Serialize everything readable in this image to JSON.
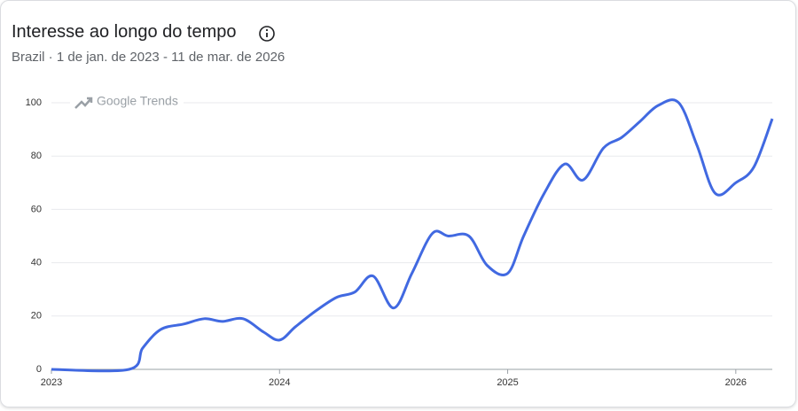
{
  "chart_data": {
    "type": "line",
    "title": "Interesse ao longo do tempo",
    "subtitle": "Brazil · 1 de jan. de 2023 - 11 de mar. de 2026",
    "watermark": "Google Trends",
    "x": [
      2023.0,
      2023.34,
      2023.4,
      2023.48,
      2023.58,
      2023.67,
      2023.75,
      2023.84,
      2023.93,
      2024.0,
      2024.07,
      2024.16,
      2024.25,
      2024.33,
      2024.41,
      2024.5,
      2024.58,
      2024.67,
      2024.74,
      2024.83,
      2024.91,
      2025.0,
      2025.07,
      2025.16,
      2025.25,
      2025.33,
      2025.42,
      2025.5,
      2025.58,
      2025.66,
      2025.75,
      2025.83,
      2025.91,
      2026.0,
      2026.08,
      2026.16
    ],
    "series": [
      {
        "color": "#4169e1",
        "values": [
          0,
          0,
          8,
          15,
          17,
          19,
          18,
          19,
          14,
          11,
          16,
          22,
          27,
          29,
          35,
          23,
          36,
          51,
          50,
          50,
          39,
          36,
          50,
          66,
          77,
          71,
          83,
          87,
          93,
          99,
          100,
          84,
          66,
          70,
          76,
          94
        ]
      }
    ],
    "xlim": [
      2023,
      2026.16
    ],
    "xticks": [
      2023,
      2024,
      2025,
      2026
    ],
    "ylim": [
      0,
      100
    ],
    "yticks": [
      0,
      20,
      40,
      60,
      80,
      100
    ],
    "grid": true
  }
}
